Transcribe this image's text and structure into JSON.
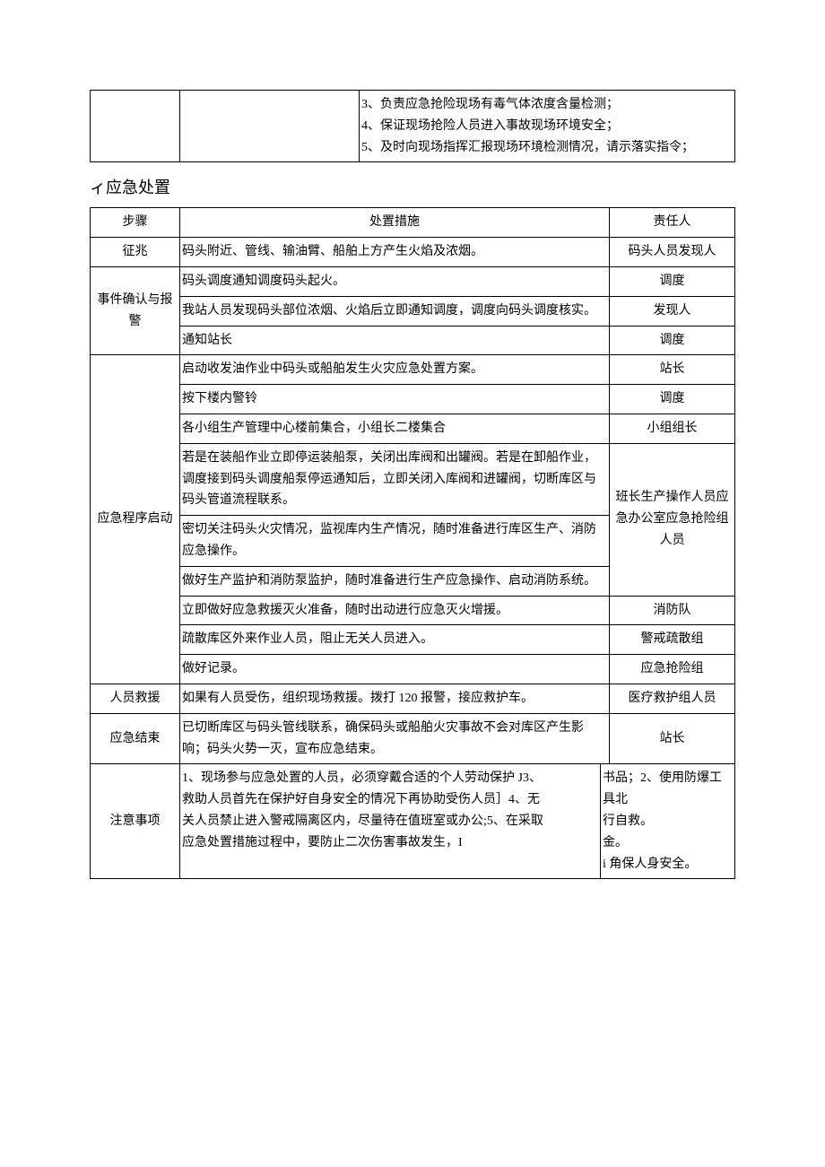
{
  "table1": {
    "row": {
      "col1": "",
      "col2": "",
      "col3": "3、负责应急抢险现场有毒气体浓度含量检测；\n4、保证现场抢险人员进入事故现场环境安全；\n5、及时向现场指挥汇报现场环境检测情况，请示落实指令；"
    }
  },
  "section_title": "ィ应急处置",
  "table2": {
    "header": {
      "c1": "步骤",
      "c2": "处置措施",
      "c3": "责任人"
    },
    "symptom": {
      "label": "征兆",
      "measure": "码头附近、管线、输油臂、船舶上方产生火焰及浓烟。",
      "person": "码头人员发现人"
    },
    "confirm": {
      "label": "事件确认与报警",
      "r1": {
        "m": "码头调度通知调度码头起火。",
        "p": "调度"
      },
      "r2": {
        "m": "我站人员发现码头部位浓烟、火焰后立即通知调度，调度向码头调度核实。",
        "p": "发现人"
      },
      "r3": {
        "m": "通知站长",
        "p": "调度"
      }
    },
    "start": {
      "label": "应急程序启动",
      "r1": {
        "m": "启动收发油作业中码头或船舶发生火灾应急处置方案。",
        "p": "站长"
      },
      "r2": {
        "m": "按下楼内警铃",
        "p": "调度"
      },
      "r3": {
        "m": "各小组生产管理中心楼前集合，小组长二楼集合",
        "p": "小组组长"
      },
      "r4": {
        "m": "若是在装船作业立即停运装船泵，关闭出库阀和出罐阀。若是在卸船作业，调度接到码头调度船泵停运通知后，立即关闭入库阀和进罐阀，切断库区与码头管道流程联系。"
      },
      "r5": {
        "m": "密切关注码头火灾情况，监视库内生产情况，随时准备进行库区生产、消防应急操作。"
      },
      "r6": {
        "m": "做好生产监护和消防泵监护，随时准备进行生产应急操作、启动消防系统。"
      },
      "p456": "班长生产操作人员应急办公室应急抢险组人员",
      "r7": {
        "m": "立即做好应急救援灭火准备，随时出动进行应急灭火增援。",
        "p": "消防队"
      },
      "r8": {
        "m": "疏散库区外来作业人员，阻止无关人员进入。",
        "p": "警戒疏散组"
      },
      "r9": {
        "m": "做好记录。",
        "p": "应急抢险组"
      }
    },
    "rescue": {
      "label": "人员救援",
      "m": "如果有人员受伤，组织现场救援。拨打 120 报警，接应救护车。",
      "p": "医疗救护组人员"
    },
    "end": {
      "label": "应急结束",
      "m": "已切断库区与码头管线联系，确保码头或船舶火灾事故不会对库区产生影响；码头火势一灭，宣布应急结束。",
      "p": "站长"
    },
    "notes": {
      "label": "注意事项",
      "left": "1、现场参与应急处置的人员，必须穿戴合适的个人劳动保护 J3、\n救助人员首先在保护好自身安全的情况下再协助受伤人员］4、无\n关人员禁止进入警戒隔离区内，尽量待在值班室或办公;5、在采取\n应急处置措施过程中，要防止二次伤害事故发生，I",
      "right": "书品；2、使用防爆工具北\n行自救。\n金。\n i 角保人身安全。"
    }
  }
}
